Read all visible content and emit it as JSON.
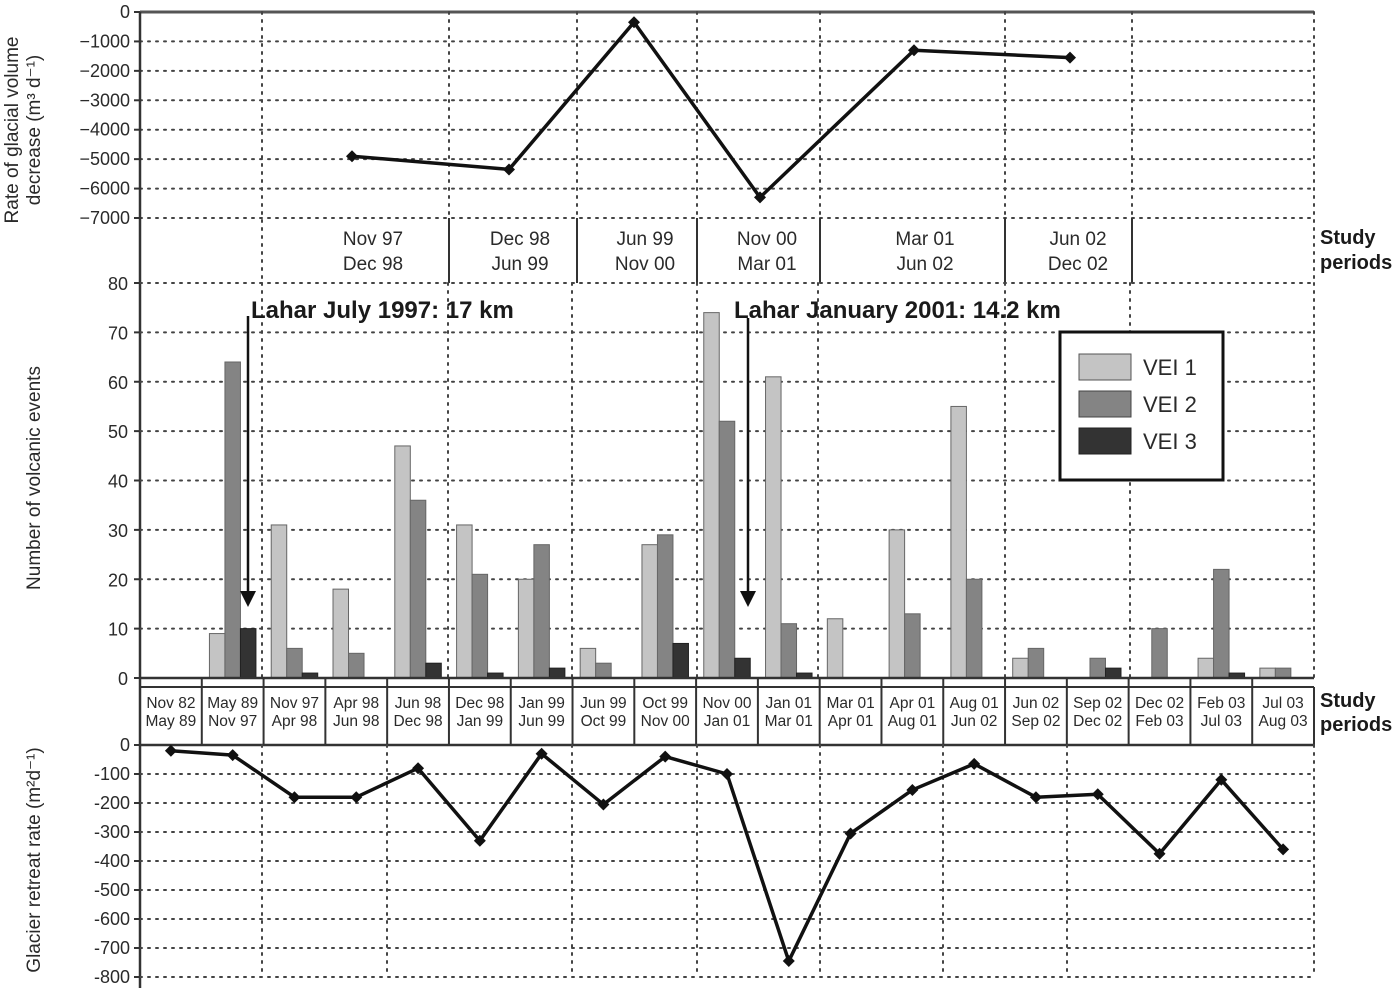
{
  "chart_data": [
    {
      "type": "line",
      "panel": "top",
      "ylabel": "Rate of glacial volume decrease (m3 d-1)",
      "ylabel_line1": "Rate of glacial volume",
      "ylabel_line2": "decrease (m",
      "ylim": [
        -7000,
        0
      ],
      "yticks": [
        0,
        -1000,
        -2000,
        -3000,
        -4000,
        -5000,
        -6000,
        -7000
      ],
      "grid": true,
      "period_axis_label": [
        "Study",
        "periods"
      ],
      "categories": [
        "Nov 97 - Dec 98",
        "Dec 98 - Jun 99",
        "Jun 99 - Nov 00",
        "Nov 00 - Mar 01",
        "Mar 01 - Jun 02",
        "Jun 02 - Dec 02"
      ],
      "period_labels": [
        {
          "line1": "Nov 97",
          "line2": "Dec 98"
        },
        {
          "line1": "Dec 98",
          "line2": "Jun 99"
        },
        {
          "line1": "Jun 99",
          "line2": "Nov 00"
        },
        {
          "line1": "Nov 00",
          "line2": "Mar 01"
        },
        {
          "line1": "Mar 01",
          "line2": "Jun 02"
        },
        {
          "line1": "Jun 02",
          "line2": "Dec 02"
        }
      ],
      "values": [
        -4900,
        -5350,
        -350,
        -6300,
        -1300,
        -1550
      ]
    },
    {
      "type": "bar",
      "panel": "middle",
      "ylabel": "Number of volcanic events",
      "ylim": [
        0,
        80
      ],
      "yticks": [
        0,
        10,
        20,
        30,
        40,
        50,
        60,
        70,
        80
      ],
      "grid": true,
      "legend_position": "upper right",
      "categories": [
        "Nov 82 - May 89",
        "May 89 - Nov 97",
        "Nov 97 - Apr 98",
        "Apr 98 - Jun 98",
        "Jun 98 - Dec 98",
        "Dec 98 - Jan 99",
        "Jan 99 - Jun 99",
        "Jun 99 - Oct 99",
        "Oct 99 - Nov 00",
        "Nov 00 - Jan 01",
        "Jan 01 - Mar 01",
        "Mar 01 - Apr 01",
        "Apr 01 - Aug 01",
        "Aug 01 - Jun 02",
        "Jun 02 - Sep 02",
        "Sep 02 - Dec 02",
        "Dec 02 - Feb 03",
        "Feb 03 - Jul 03",
        "Jul 03 - Aug 03"
      ],
      "series": [
        {
          "name": "VEI 1",
          "color": "#c4c4c4",
          "values": [
            0,
            9,
            31,
            18,
            47,
            31,
            20,
            6,
            27,
            74,
            61,
            12,
            30,
            55,
            4,
            0,
            0,
            4,
            2
          ]
        },
        {
          "name": "VEI 2",
          "color": "#848484",
          "values": [
            0,
            64,
            6,
            5,
            36,
            21,
            27,
            3,
            29,
            52,
            11,
            0,
            13,
            20,
            6,
            4,
            10,
            22,
            2
          ]
        },
        {
          "name": "VEI 3",
          "color": "#333333",
          "values": [
            0,
            10,
            1,
            0,
            3,
            1,
            2,
            0,
            7,
            4,
            1,
            0,
            0,
            0,
            0,
            2,
            0,
            1,
            0
          ]
        }
      ],
      "annotations": [
        {
          "text": "Lahar July 1997: 17 km",
          "period_index": 1
        },
        {
          "text": "Lahar January 2001: 14.2 km",
          "period_index": 9
        }
      ]
    },
    {
      "type": "line",
      "panel": "bottom",
      "ylabel": "Glacier retreat rate (m2 d-1)",
      "ylim": [
        -800,
        0
      ],
      "yticks": [
        0,
        -100,
        -200,
        -300,
        -400,
        -500,
        -600,
        -700,
        -800
      ],
      "grid": true,
      "period_axis_label": [
        "Study",
        "periods"
      ],
      "period_labels": [
        {
          "line1": "Nov 82",
          "line2": "May 89"
        },
        {
          "line1": "May 89",
          "line2": "Nov 97"
        },
        {
          "line1": "Nov 97",
          "line2": "Apr 98"
        },
        {
          "line1": "Apr 98",
          "line2": "Jun 98"
        },
        {
          "line1": "Jun 98",
          "line2": "Dec 98"
        },
        {
          "line1": "Dec 98",
          "line2": "Jan 99"
        },
        {
          "line1": "Jan 99",
          "line2": "Jun 99"
        },
        {
          "line1": "Jun 99",
          "line2": "Oct 99"
        },
        {
          "line1": "Oct 99",
          "line2": "Nov 00"
        },
        {
          "line1": "Nov 00",
          "line2": "Jan 01"
        },
        {
          "line1": "Jan 01",
          "line2": "Mar 01"
        },
        {
          "line1": "Mar 01",
          "line2": "Apr 01"
        },
        {
          "line1": "Apr 01",
          "line2": "Aug 01"
        },
        {
          "line1": "Aug 01",
          "line2": "Jun 02"
        },
        {
          "line1": "Jun 02",
          "line2": "Sep 02"
        },
        {
          "line1": "Sep 02",
          "line2": "Dec 02"
        },
        {
          "line1": "Dec 02",
          "line2": "Feb 03"
        },
        {
          "line1": "Feb 03",
          "line2": "Jul 03"
        },
        {
          "line1": "Jul 03",
          "line2": "Aug 03"
        }
      ],
      "values": [
        -20,
        -35,
        -180,
        -180,
        -80,
        -330,
        -30,
        -205,
        -40,
        -100,
        -745,
        -305,
        -155,
        -65,
        -180,
        -170,
        -375,
        -120,
        -360
      ]
    }
  ],
  "labels": {
    "top_ylabel_line1": "Rate of glacial volume",
    "top_ylabel_line2": "decrease (m³ d⁻¹)",
    "mid_ylabel": "Number of volcanic events",
    "bot_ylabel": "Glacier retreat rate (m²d⁻¹)",
    "study": "Study",
    "periods": "periods",
    "anno1": "Lahar July 1997: 17 km",
    "anno2": "Lahar January 2001: 14.2 km",
    "legend": [
      "VEI 1",
      "VEI 2",
      "VEI 3"
    ]
  },
  "colors": {
    "vei1": "#c4c4c4",
    "vei2": "#848484",
    "vei3": "#333333",
    "line": "#111111",
    "grid": "#444444"
  }
}
